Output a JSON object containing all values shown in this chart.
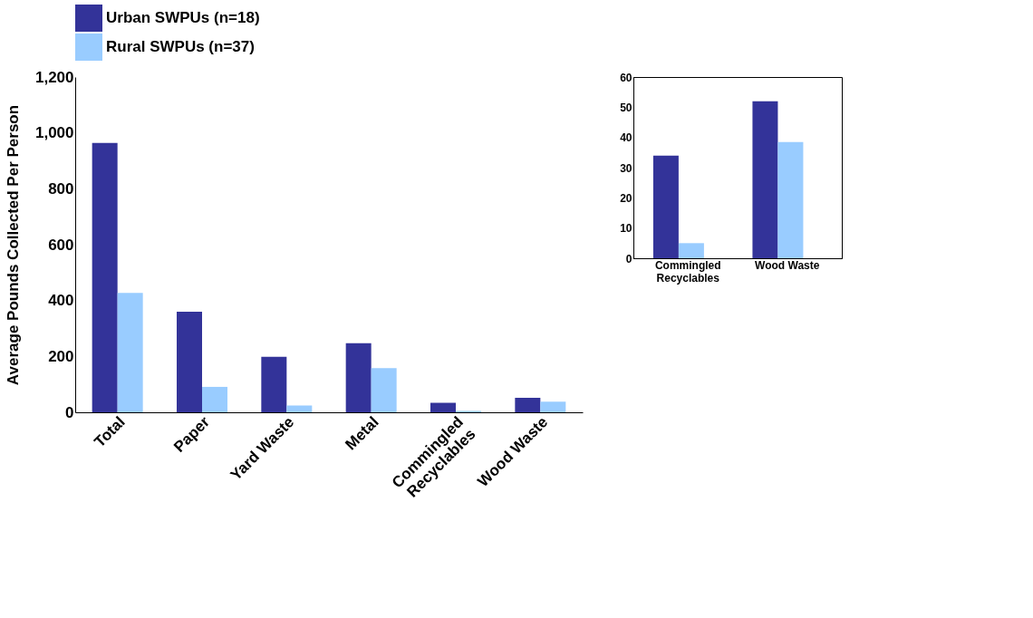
{
  "chart_data": [
    {
      "type": "bar",
      "ylabel": "Average Pounds Collected Per Person",
      "categories": [
        "Total",
        "Paper",
        "Yard Waste",
        "Metal",
        "Commingled Recyclables",
        "Wood Waste"
      ],
      "series": [
        {
          "name": "Urban SWPUs (n=18)",
          "color": "#333399",
          "values": [
            964,
            360,
            199,
            247,
            34,
            52
          ]
        },
        {
          "name": "Rural SWPUs (n=37)",
          "color": "#99ccff",
          "values": [
            427,
            91,
            24,
            158,
            5,
            38
          ]
        }
      ],
      "ylim": [
        0,
        1200
      ],
      "yticks": [
        0,
        200,
        400,
        600,
        800,
        {
          "value": 1000,
          "label": "1,000"
        },
        {
          "value": 1200,
          "label": "1,200"
        }
      ],
      "grid": false,
      "legend": "top"
    },
    {
      "type": "bar",
      "categories": [
        "Commingled Recyclables",
        "Wood Waste"
      ],
      "series": [
        {
          "color": "#333399",
          "values": [
            34,
            52
          ]
        },
        {
          "color": "#99ccff",
          "values": [
            5,
            38.5
          ]
        }
      ],
      "ylim": [
        0,
        60
      ],
      "yticks": [
        0,
        10,
        20,
        30,
        40,
        50,
        60
      ],
      "grid": false
    }
  ]
}
